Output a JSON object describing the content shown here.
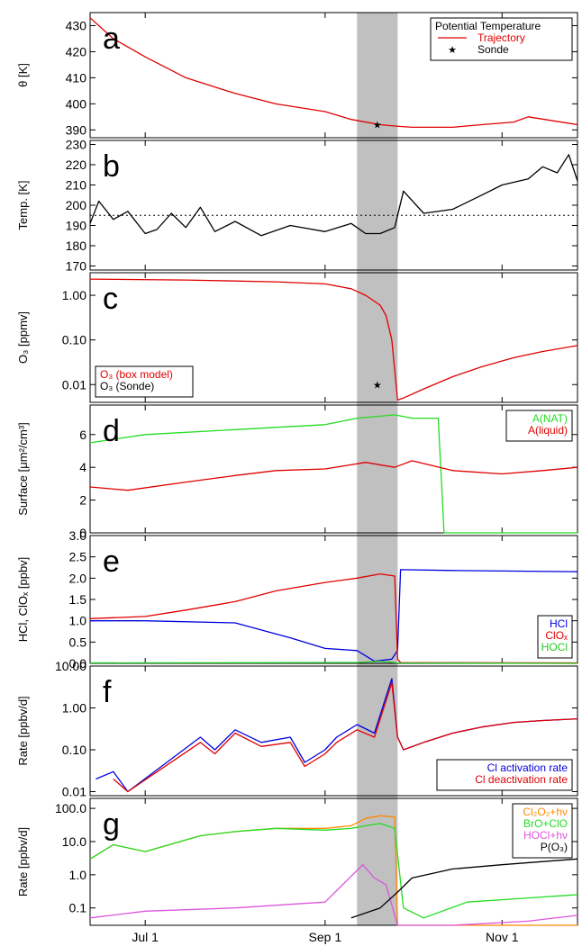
{
  "chart_data": {
    "shaded_region": {
      "x": [
        "Sep 12",
        "Sep 26"
      ],
      "color": "#c0c0c0"
    },
    "x_axis": {
      "ticks": [
        "Jul 1",
        "Sep 1",
        "Nov 1"
      ],
      "range": [
        "Jun 12",
        "Nov 27"
      ]
    },
    "panels": [
      {
        "letter": "a",
        "type": "line",
        "ylabel": "θ [K]",
        "ylim": [
          387,
          435
        ],
        "yscale": "linear",
        "yticks": [
          "390",
          "400",
          "410",
          "420",
          "430"
        ],
        "legend": {
          "title": "Potential Temperature",
          "position": "top-right",
          "items": [
            {
              "label": "Trajectory",
              "color": "#e00000"
            },
            {
              "label": "Sonde",
              "color": "#000000"
            }
          ]
        },
        "series": [
          {
            "name": "Trajectory",
            "color": "#e00000",
            "x": [
              "Jun 12",
              "Jun 20",
              "Jul 1",
              "Jul 15",
              "Aug 1",
              "Aug 15",
              "Sep 1",
              "Sep 10",
              "Sep 20",
              "Sep 25",
              "Oct 1",
              "Oct 15",
              "Oct 25",
              "Nov 5",
              "Nov 10",
              "Nov 27"
            ],
            "y": [
              433,
              425,
              418,
              410,
              404,
              400,
              397,
              394,
              392,
              391.5,
              391,
              391,
              392,
              393,
              395,
              392
            ]
          },
          {
            "name": "Sonde",
            "color": "#000000",
            "x": [
              "Sep 19"
            ],
            "y": [
              392
            ]
          }
        ]
      },
      {
        "letter": "b",
        "type": "line",
        "ylabel": "Temp. [K]",
        "ylim": [
          168,
          232
        ],
        "yscale": "linear",
        "yticks": [
          "170",
          "180",
          "190",
          "200",
          "210",
          "220",
          "230"
        ],
        "hline": 195,
        "series": [
          {
            "color": "#000000",
            "x": [
              "Jun 12",
              "Jun 15",
              "Jun 20",
              "Jun 25",
              "Jul 1",
              "Jul 5",
              "Jul 10",
              "Jul 15",
              "Jul 20",
              "Jul 25",
              "Aug 1",
              "Aug 10",
              "Aug 20",
              "Sep 1",
              "Sep 10",
              "Sep 15",
              "Sep 20",
              "Sep 25",
              "Sep 28",
              "Oct 5",
              "Oct 15",
              "Oct 25",
              "Nov 1",
              "Nov 10",
              "Nov 15",
              "Nov 20",
              "Nov 24",
              "Nov 27"
            ],
            "y": [
              191,
              202,
              193,
              197,
              186,
              188,
              196,
              189,
              199,
              187,
              192,
              185,
              190,
              187,
              191,
              186,
              186,
              189,
              207,
              196,
              198,
              205,
              210,
              213,
              219,
              216,
              225,
              212
            ]
          }
        ]
      },
      {
        "letter": "c",
        "type": "line",
        "ylabel": "O₃ [ppmv]",
        "ylim": [
          0.004,
          3.2
        ],
        "yscale": "log",
        "yticks": [
          "0.01",
          "0.10",
          "1.00"
        ],
        "legend": {
          "position": "bottom-left",
          "items": [
            {
              "label": "O₃ (box model)",
              "color": "#e00000"
            },
            {
              "label": "O₃ (Sonde)",
              "color": "#000000"
            }
          ]
        },
        "series": [
          {
            "name": "O₃ (box model)",
            "color": "#e00000",
            "x": [
              "Jun 12",
              "Jul 15",
              "Aug 15",
              "Sep 1",
              "Sep 10",
              "Sep 15",
              "Sep 20",
              "Sep 22",
              "Sep 24",
              "Sep 26",
              "Sep 28",
              "Oct 5",
              "Oct 15",
              "Oct 25",
              "Nov 5",
              "Nov 15",
              "Nov 27"
            ],
            "y": [
              2.3,
              2.2,
              2.0,
              1.8,
              1.4,
              1.0,
              0.6,
              0.35,
              0.1,
              0.0045,
              0.005,
              0.008,
              0.015,
              0.025,
              0.04,
              0.055,
              0.075
            ]
          },
          {
            "name": "O₃ (Sonde)",
            "color": "#000000",
            "x": [
              "Sep 19"
            ],
            "y": [
              0.01
            ]
          }
        ]
      },
      {
        "letter": "d",
        "type": "line",
        "ylabel": "Surface [μm²/cm³]",
        "ylim": [
          0,
          7.8
        ],
        "yscale": "linear",
        "yticks": [
          "0",
          "2",
          "4",
          "6"
        ],
        "legend": {
          "position": "top-right",
          "items": [
            {
              "label": "A(NAT)",
              "color": "#22dd22"
            },
            {
              "label": "A(liquid)",
              "color": "#e00000"
            }
          ]
        },
        "series": [
          {
            "name": "A(NAT)",
            "color": "#22dd22",
            "x": [
              "Jun 12",
              "Jul 1",
              "Aug 1",
              "Sep 1",
              "Sep 12",
              "Sep 25",
              "Oct 1",
              "Oct 10",
              "Oct 12",
              "Nov 27"
            ],
            "y": [
              5.5,
              6.0,
              6.3,
              6.6,
              7.0,
              7.2,
              7.0,
              7.0,
              0,
              0
            ]
          },
          {
            "name": "A(liquid)",
            "color": "#e00000",
            "x": [
              "Jun 12",
              "Jun 25",
              "Jul 15",
              "Aug 1",
              "Aug 15",
              "Sep 1",
              "Sep 15",
              "Sep 25",
              "Oct 1",
              "Oct 15",
              "Nov 1",
              "Nov 15",
              "Nov 27"
            ],
            "y": [
              2.8,
              2.6,
              3.1,
              3.5,
              3.8,
              3.9,
              4.3,
              4.0,
              4.4,
              3.8,
              3.6,
              3.8,
              4.0
            ]
          }
        ]
      },
      {
        "letter": "e",
        "type": "line",
        "ylabel": "HCl, ClOₓ [ppbv]",
        "ylim": [
          0,
          3.0
        ],
        "yscale": "linear",
        "yticks": [
          "0.0",
          "0.5",
          "1.0",
          "1.5",
          "2.0",
          "2.5",
          "3.0"
        ],
        "legend": {
          "position": "bottom-right",
          "items": [
            {
              "label": "HCl",
              "color": "#0000e0"
            },
            {
              "label": "ClOₓ",
              "color": "#e00000"
            },
            {
              "label": "HOCl",
              "color": "#22cc22"
            }
          ]
        },
        "series": [
          {
            "name": "HCl",
            "color": "#0000e0",
            "x": [
              "Jun 12",
              "Jul 1",
              "Aug 1",
              "Aug 20",
              "Sep 1",
              "Sep 12",
              "Sep 18",
              "Sep 24",
              "Sep 26",
              "Sep 27",
              "Oct 15",
              "Nov 27"
            ],
            "y": [
              1.0,
              1.0,
              0.95,
              0.6,
              0.35,
              0.3,
              0.05,
              0.1,
              0.3,
              2.2,
              2.18,
              2.15
            ]
          },
          {
            "name": "ClOₓ",
            "color": "#e00000",
            "x": [
              "Jun 12",
              "Jul 1",
              "Jul 15",
              "Aug 1",
              "Aug 15",
              "Sep 1",
              "Sep 12",
              "Sep 20",
              "Sep 25",
              "Sep 26",
              "Sep 27",
              "Nov 27"
            ],
            "y": [
              1.05,
              1.1,
              1.25,
              1.45,
              1.7,
              1.9,
              2.0,
              2.1,
              2.05,
              0.1,
              0.02,
              0.01
            ]
          },
          {
            "name": "HOCl",
            "color": "#22cc22",
            "x": [
              "Jun 12",
              "Sep 12",
              "Sep 20",
              "Sep 26",
              "Nov 27"
            ],
            "y": [
              0.01,
              0.02,
              0.05,
              0.01,
              0.0
            ]
          }
        ]
      },
      {
        "letter": "f",
        "type": "line",
        "ylabel": "Rate [ppbv/d]",
        "ylim": [
          0.008,
          10
        ],
        "yscale": "log",
        "yticks": [
          "0.01",
          "0.10",
          "1.00",
          "10.00"
        ],
        "legend": {
          "position": "bottom-right",
          "items": [
            {
              "label": "Cl activation rate",
              "color": "#0000e0"
            },
            {
              "label": "Cl deactivation rate",
              "color": "#e00000"
            }
          ]
        },
        "series": [
          {
            "name": "Cl activation rate",
            "color": "#0000e0",
            "x": [
              "Jun 14",
              "Jun 20",
              "Jun 25",
              "Jul 20",
              "Jul 25",
              "Aug 1",
              "Aug 10",
              "Aug 20",
              "Aug 25",
              "Sep 1",
              "Sep 5",
              "Sep 12",
              "Sep 18",
              "Sep 24",
              "Sep 26",
              "Sep 28",
              "Oct 5",
              "Oct 15",
              "Oct 25",
              "Nov 5",
              "Nov 15",
              "Nov 27"
            ],
            "y": [
              0.02,
              0.03,
              0.01,
              0.2,
              0.1,
              0.3,
              0.15,
              0.2,
              0.05,
              0.1,
              0.2,
              0.4,
              0.25,
              5.0,
              0.2,
              0.1,
              0.15,
              0.25,
              0.35,
              0.45,
              0.5,
              0.55
            ]
          },
          {
            "name": "Cl deactivation rate",
            "color": "#e00000",
            "x": [
              "Jun 20",
              "Jun 25",
              "Jul 20",
              "Jul 25",
              "Aug 1",
              "Aug 10",
              "Aug 20",
              "Aug 25",
              "Sep 1",
              "Sep 5",
              "Sep 12",
              "Sep 18",
              "Sep 24",
              "Sep 26",
              "Sep 28",
              "Oct 5",
              "Oct 15",
              "Oct 25",
              "Nov 5",
              "Nov 15",
              "Nov 27"
            ],
            "y": [
              0.02,
              0.01,
              0.15,
              0.08,
              0.25,
              0.12,
              0.15,
              0.04,
              0.08,
              0.15,
              0.3,
              0.2,
              4.0,
              0.2,
              0.1,
              0.15,
              0.25,
              0.35,
              0.45,
              0.5,
              0.55
            ]
          }
        ]
      },
      {
        "letter": "g",
        "type": "line",
        "ylabel": "Rate [ppbv/d]",
        "ylim": [
          0.03,
          200
        ],
        "yscale": "log",
        "yticks": [
          "0.1",
          "1.0",
          "10.0",
          "100.0"
        ],
        "legend": {
          "position": "top-right",
          "items": [
            {
              "label": "Cl₂O₂+hν",
              "color": "#ff8800"
            },
            {
              "label": "BrO+ClO",
              "color": "#22dd22"
            },
            {
              "label": "HOCl+hν",
              "color": "#dd55dd"
            },
            {
              "label": "P(O₃)",
              "color": "#000000"
            }
          ]
        },
        "series": [
          {
            "name": "Cl₂O₂+hν",
            "color": "#ff8800",
            "x": [
              "Jun 12",
              "Jun 20",
              "Jul 1",
              "Jul 20",
              "Aug 1",
              "Aug 15",
              "Sep 1",
              "Sep 10",
              "Sep 15",
              "Sep 20",
              "Sep 25",
              "Sep 26",
              "Nov 27"
            ],
            "y": [
              3,
              8,
              5,
              15,
              20,
              25,
              25,
              30,
              50,
              60,
              55,
              0.03,
              0.03
            ]
          },
          {
            "name": "BrO+ClO",
            "color": "#22dd22",
            "x": [
              "Jun 12",
              "Jun 20",
              "Jul 1",
              "Jul 20",
              "Aug 1",
              "Aug 15",
              "Sep 1",
              "Sep 10",
              "Sep 15",
              "Sep 20",
              "Sep 25",
              "Sep 28",
              "Oct 5",
              "Oct 20",
              "Nov 10",
              "Nov 27"
            ],
            "y": [
              3,
              8,
              5,
              15,
              20,
              25,
              22,
              25,
              30,
              35,
              25,
              0.1,
              0.05,
              0.15,
              0.2,
              0.25
            ]
          },
          {
            "name": "HOCl+hν",
            "color": "#dd55dd",
            "x": [
              "Jun 12",
              "Jul 1",
              "Aug 1",
              "Sep 1",
              "Sep 14",
              "Sep 18",
              "Sep 22",
              "Sep 26",
              "Oct 15",
              "Nov 10",
              "Nov 27"
            ],
            "y": [
              0.05,
              0.08,
              0.1,
              0.15,
              2.0,
              0.8,
              0.5,
              0.03,
              0.03,
              0.04,
              0.06
            ]
          },
          {
            "name": "P(O₃)",
            "color": "#000000",
            "x": [
              "Sep 10",
              "Sep 20",
              "Sep 26",
              "Oct 1",
              "Oct 15",
              "Nov 1",
              "Nov 15",
              "Nov 27"
            ],
            "y": [
              0.05,
              0.1,
              0.3,
              0.8,
              1.5,
              2.0,
              2.5,
              3.0
            ]
          }
        ]
      }
    ]
  }
}
